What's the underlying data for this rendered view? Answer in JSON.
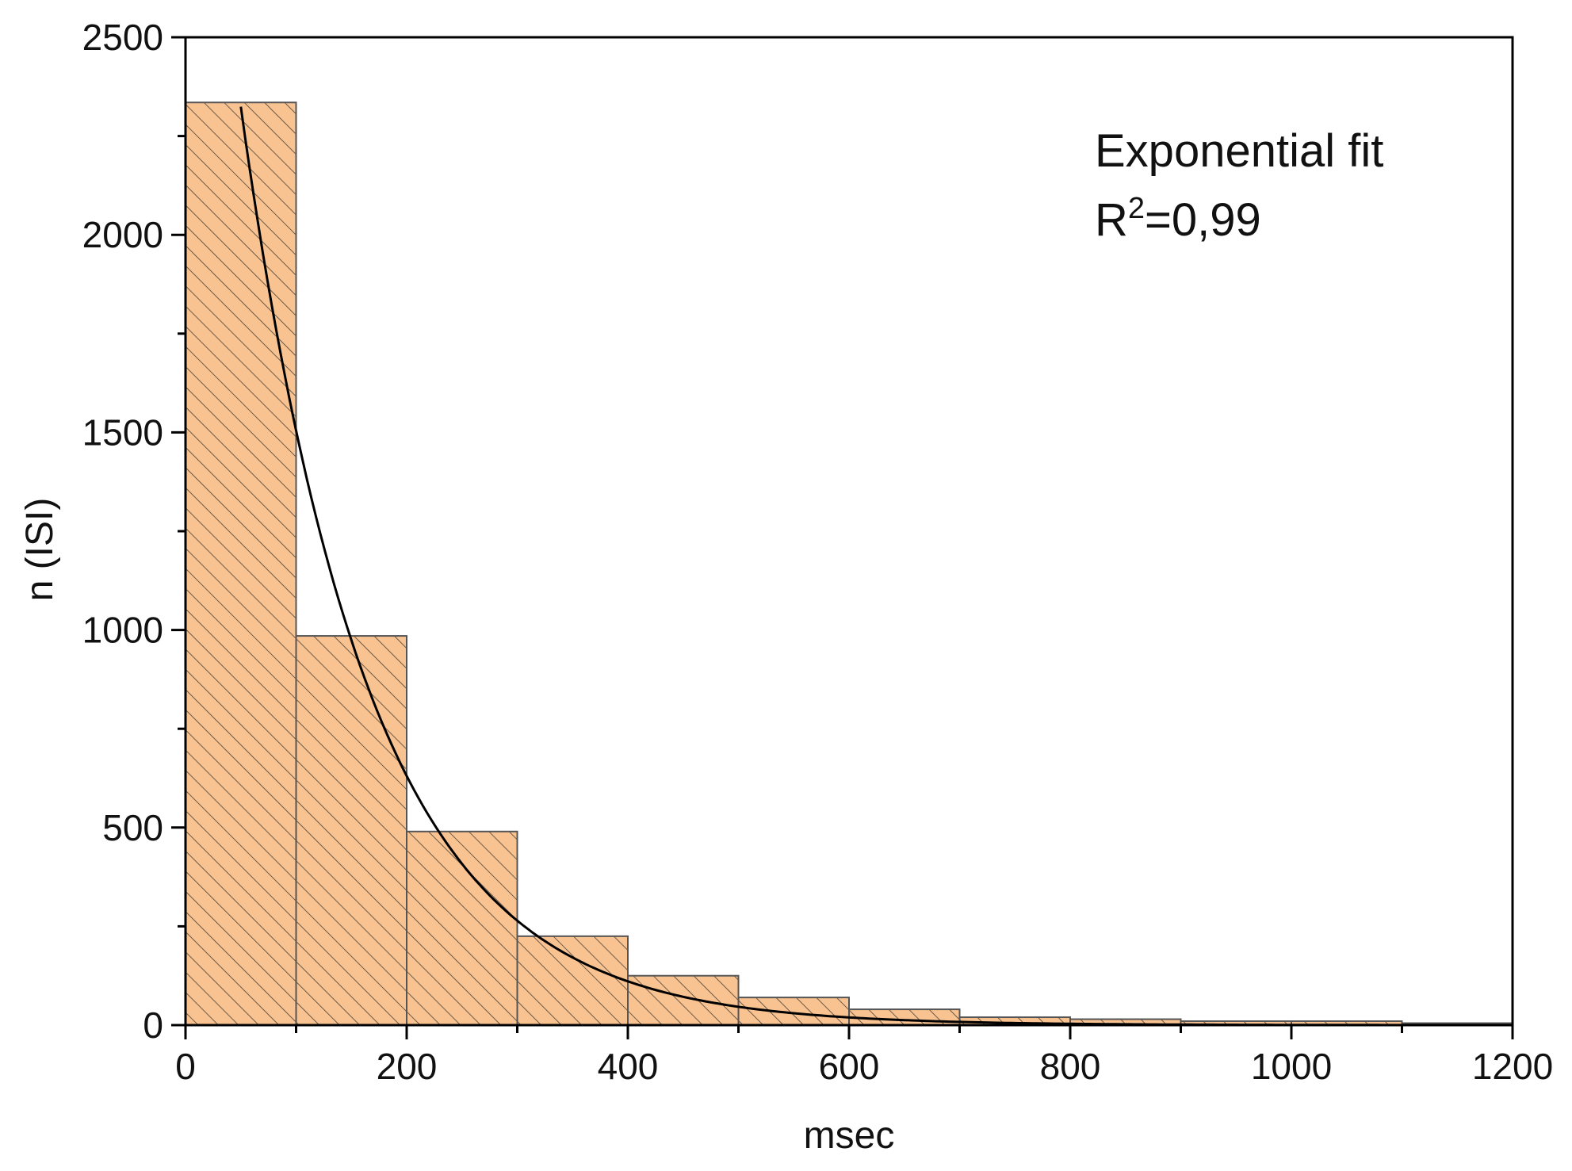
{
  "chart_data": {
    "type": "bar",
    "title": "",
    "xlabel": "msec",
    "ylabel": "n (ISI)",
    "xlim": [
      0,
      1200
    ],
    "ylim": [
      0,
      2500
    ],
    "xticks": [
      0,
      200,
      400,
      600,
      800,
      1000,
      1200
    ],
    "yticks": [
      0,
      500,
      1000,
      1500,
      2000,
      2500
    ],
    "bin_width": 100,
    "bins": [
      {
        "start": 0,
        "end": 100,
        "value": 2335
      },
      {
        "start": 100,
        "end": 200,
        "value": 985
      },
      {
        "start": 200,
        "end": 300,
        "value": 490
      },
      {
        "start": 300,
        "end": 400,
        "value": 225
      },
      {
        "start": 400,
        "end": 500,
        "value": 125
      },
      {
        "start": 500,
        "end": 600,
        "value": 70
      },
      {
        "start": 600,
        "end": 700,
        "value": 40
      },
      {
        "start": 700,
        "end": 800,
        "value": 20
      },
      {
        "start": 800,
        "end": 900,
        "value": 15
      },
      {
        "start": 900,
        "end": 1000,
        "value": 10
      },
      {
        "start": 1000,
        "end": 1100,
        "value": 10
      },
      {
        "start": 1100,
        "end": 1200,
        "value": 5
      }
    ],
    "fit_curve": {
      "type": "exponential",
      "x_start": 50,
      "x_end": 1200,
      "amplitude": 3590,
      "tau": 115,
      "offset": 0
    },
    "annotation": {
      "line1": "Exponential fit",
      "r_label": "R",
      "r_sup": "2",
      "r_value": "=0,99"
    },
    "colors": {
      "bar_fill": "#f9c391",
      "bar_edge": "#555555",
      "hatch": "#6b5a48",
      "curve": "#000000",
      "axis": "#000000"
    },
    "grid": false,
    "legend": "none"
  }
}
